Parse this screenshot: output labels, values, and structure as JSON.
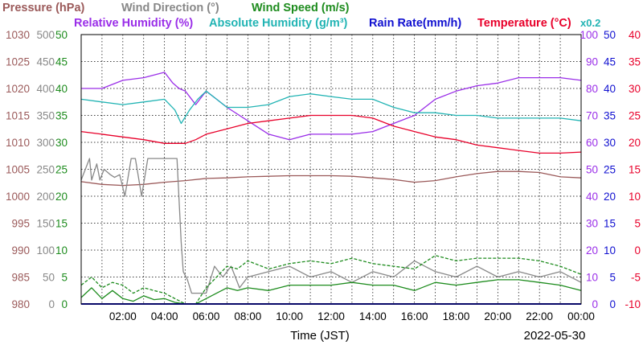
{
  "legend": {
    "pressure": "Pressure (hPa)",
    "wind_direction": "Wind Direction (°)",
    "wind_speed": "Wind Speed (m/s)",
    "relative_humidity": "Relative Humidity (%)",
    "absolute_humidity": "Absolute Humidity (g/m³)",
    "rain_rate": "Rain Rate(mm/h)",
    "temperature": "Temperature (°C)",
    "abs_humidity_scale": "x0.2"
  },
  "colors": {
    "pressure": "#9b5a5a",
    "wind_direction": "#888888",
    "wind_speed": "#1e8c1e",
    "relative_humidity": "#9a2ee8",
    "absolute_humidity": "#22b4b4",
    "rain_rate": "#1010d0",
    "temperature": "#e8002a"
  },
  "xlabel": "Time (JST)",
  "date": "2022-05-30",
  "chart_data": {
    "type": "line",
    "title": "",
    "x_range": [
      "00:00",
      "24:00"
    ],
    "x_ticks": [
      "02:00",
      "04:00",
      "06:00",
      "08:00",
      "10:00",
      "12:00",
      "14:00",
      "16:00",
      "18:00",
      "20:00",
      "22:00",
      "00:00"
    ],
    "grid": true,
    "axes": {
      "pressure": {
        "side": "left",
        "range": [
          980,
          1030
        ],
        "ticks": [
          "1030",
          "1025",
          "1020",
          "1015",
          "1010",
          "1005",
          "1000",
          "995",
          "990",
          "985",
          "980"
        ]
      },
      "wind_direction": {
        "side": "left",
        "range": [
          0,
          500
        ],
        "ticks": [
          "500",
          "450",
          "400",
          "350",
          "300",
          "250",
          "200",
          "150",
          "100",
          "50",
          "0"
        ]
      },
      "wind_speed": {
        "side": "left",
        "range": [
          0,
          50
        ],
        "ticks": [
          "50",
          "45",
          "40",
          "35",
          "30",
          "25",
          "20",
          "15",
          "10",
          "5",
          "0"
        ]
      },
      "relative_humidity": {
        "side": "right",
        "range": [
          0,
          100
        ],
        "ticks": [
          "100",
          "90",
          "80",
          "70",
          "60",
          "50",
          "40",
          "30",
          "20",
          "10",
          "0"
        ]
      },
      "rain_rate": {
        "side": "right",
        "range": [
          0,
          50
        ],
        "ticks": [
          "50",
          "45",
          "40",
          "35",
          "30",
          "25",
          "20",
          "15",
          "10",
          "5",
          "0"
        ]
      },
      "temperature": {
        "side": "right",
        "range": [
          -10,
          40
        ],
        "ticks": [
          "40",
          "35",
          "30",
          "25",
          "20",
          "15",
          "10",
          "5",
          "0",
          "-5",
          "-10"
        ]
      }
    },
    "series": [
      {
        "name": "Pressure (hPa)",
        "axis": "pressure",
        "x": [
          0,
          1,
          2,
          3,
          4,
          5,
          6,
          7,
          8,
          9,
          10,
          11,
          12,
          13,
          14,
          15,
          16,
          17,
          18,
          19,
          20,
          21,
          22,
          23,
          24
        ],
        "y": [
          1002.7,
          1002.2,
          1002.0,
          1002.2,
          1002.6,
          1002.9,
          1003.3,
          1003.4,
          1003.6,
          1003.7,
          1003.8,
          1003.8,
          1003.8,
          1003.7,
          1003.4,
          1003.1,
          1002.6,
          1002.9,
          1003.6,
          1004.2,
          1004.6,
          1004.6,
          1004.4,
          1003.6,
          1003.4
        ]
      },
      {
        "name": "Wind Direction (°)",
        "axis": "wind_direction",
        "x": [
          0,
          0.4,
          0.5,
          0.75,
          0.9,
          1.1,
          1.4,
          1.6,
          1.85,
          2.1,
          2.4,
          2.6,
          2.9,
          3.2,
          3.5,
          4.0,
          4.6,
          4.8,
          4.9,
          5.1,
          5.3,
          5.45,
          5.7,
          6.0,
          6.4,
          6.8,
          7.2,
          7.6,
          8.0,
          9.0,
          10.0,
          11.0,
          12.0,
          13.0,
          14.0,
          15.0,
          16.0,
          17.0,
          18.0,
          19.0,
          20.0,
          21.0,
          22.0,
          23.0,
          24.0
        ],
        "y": [
          230,
          270,
          230,
          260,
          230,
          250,
          240,
          235,
          240,
          200,
          270,
          270,
          200,
          270,
          270,
          270,
          270,
          115,
          60,
          45,
          20,
          20,
          20,
          20,
          70,
          50,
          70,
          30,
          50,
          60,
          70,
          50,
          60,
          40,
          60,
          50,
          80,
          60,
          50,
          70,
          50,
          60,
          50,
          60,
          40
        ]
      },
      {
        "name": "Wind Speed (m/s)",
        "axis": "wind_speed",
        "x": [
          0,
          0.5,
          1,
          1.5,
          2,
          2.5,
          3,
          3.5,
          4,
          4.5,
          5,
          5.5,
          6,
          6.5,
          7,
          7.5,
          8,
          9,
          10,
          11,
          12,
          13,
          14,
          15,
          16,
          17,
          18,
          19,
          20,
          21,
          22,
          23,
          24
        ],
        "y": [
          1.2,
          3.0,
          1.0,
          2.5,
          1.0,
          0.5,
          1.5,
          0.8,
          1.0,
          0.3,
          0,
          0,
          1.0,
          2.0,
          3.0,
          2.5,
          3.0,
          2.5,
          3.5,
          3.5,
          3.5,
          4.0,
          3.5,
          3.5,
          2.5,
          4.0,
          3.5,
          4.0,
          4.5,
          4.5,
          4.0,
          3.5,
          2.5
        ]
      },
      {
        "name": "Wind Speed gust (m/s)",
        "axis": "wind_speed",
        "x": [
          0,
          0.5,
          1,
          1.5,
          2,
          2.5,
          3,
          3.5,
          4,
          4.5,
          5,
          5.5,
          6,
          6.5,
          7,
          7.5,
          8,
          9,
          10,
          11,
          12,
          13,
          14,
          15,
          16,
          17,
          18,
          19,
          20,
          21,
          22,
          23,
          24
        ],
        "y": [
          3.5,
          5.0,
          3.0,
          4.0,
          3.5,
          2.0,
          3.0,
          2.5,
          2.0,
          1.0,
          0,
          0,
          3.0,
          5.0,
          7.0,
          6.5,
          8.0,
          6.5,
          7.5,
          8.0,
          7.5,
          8.5,
          7.5,
          7.0,
          6.5,
          9.0,
          8.0,
          8.5,
          8.5,
          8.5,
          8.0,
          7.0,
          5.5
        ]
      },
      {
        "name": "Relative Humidity (%)",
        "axis": "relative_humidity",
        "x": [
          0,
          1,
          2,
          3,
          3.5,
          4,
          4.4,
          4.7,
          5,
          5.5,
          6,
          6.5,
          7,
          8,
          9,
          10,
          10.5,
          11,
          12,
          13,
          14,
          15,
          16,
          17,
          18,
          19,
          20,
          21,
          22,
          23,
          24
        ],
        "y": [
          80,
          80,
          83,
          84,
          85,
          86,
          82,
          80,
          79,
          74,
          79,
          76,
          73,
          68,
          63,
          61,
          62,
          63,
          63,
          63,
          64,
          67,
          70,
          76,
          79,
          81,
          82,
          84,
          84,
          84,
          83
        ]
      },
      {
        "name": "Absolute Humidity (g/m³)",
        "axis": "relative_humidity",
        "x": [
          0,
          1,
          2,
          3,
          4,
          4.5,
          4.8,
          5.2,
          5.6,
          6,
          6.5,
          7,
          8,
          9,
          10,
          11,
          12,
          13,
          14,
          15,
          16,
          17,
          18,
          19,
          20,
          21,
          22,
          23,
          24
        ],
        "y": [
          76,
          75,
          74,
          75,
          76,
          72,
          67,
          72,
          76,
          79,
          76,
          73,
          73,
          74,
          77,
          78,
          77,
          76,
          76,
          73,
          71,
          71,
          70,
          70,
          69,
          69,
          69,
          69,
          68
        ]
      },
      {
        "name": "Temperature (°C)",
        "axis": "temperature",
        "x": [
          0,
          1,
          2,
          3,
          4,
          5,
          5.5,
          6,
          7,
          8,
          9,
          10,
          11,
          12,
          13,
          14,
          15,
          16,
          17,
          18,
          19,
          20,
          21,
          22,
          23,
          24
        ],
        "y": [
          22.0,
          21.5,
          21.0,
          20.5,
          19.8,
          19.8,
          20.5,
          21.5,
          22.5,
          23.5,
          24.0,
          24.5,
          25.0,
          25.0,
          25.0,
          24.5,
          23.0,
          22.0,
          21.0,
          20.5,
          19.5,
          19.0,
          18.5,
          18.0,
          18.0,
          18.2
        ]
      },
      {
        "name": "Rain Rate(mm/h)",
        "axis": "rain_rate",
        "x": [
          0,
          24
        ],
        "y": [
          0,
          0
        ]
      }
    ]
  }
}
